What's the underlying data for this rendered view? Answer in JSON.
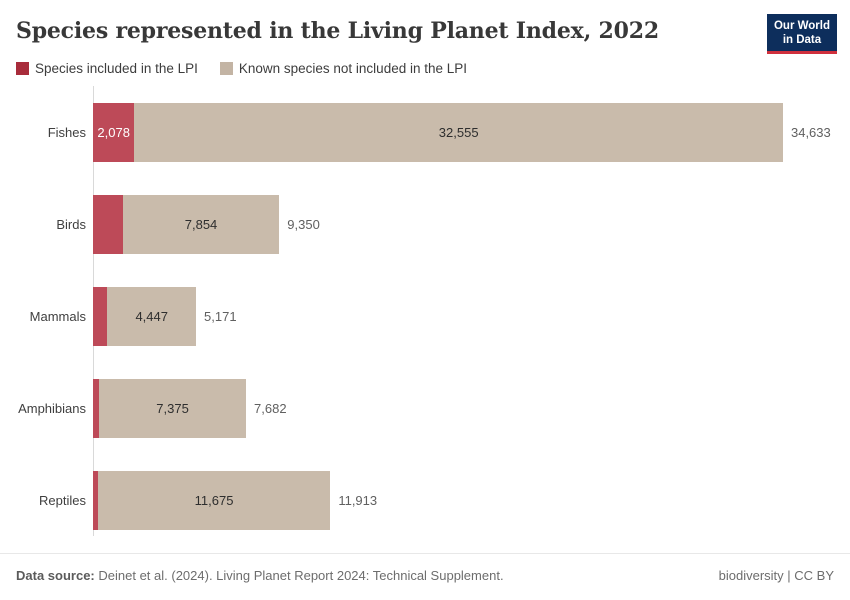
{
  "header": {
    "title": "Species represented in the Living Planet Index, 2022"
  },
  "logo": {
    "line1": "Our World",
    "line2": "in Data"
  },
  "chart_data": {
    "type": "bar",
    "orientation": "horizontal",
    "stacked": true,
    "title": "Species represented in the Living Planet Index, 2022",
    "categories": [
      "Fishes",
      "Birds",
      "Mammals",
      "Amphibians",
      "Reptiles"
    ],
    "series": [
      {
        "name": "Species included in the LPI",
        "values": [
          2078,
          1496,
          724,
          307,
          238
        ]
      },
      {
        "name": "Known species not included in the LPI",
        "values": [
          32555,
          7854,
          4447,
          7375,
          11675
        ]
      }
    ],
    "totals": [
      34633,
      9350,
      5171,
      7682,
      11913
    ],
    "visible_segment_labels": {
      "lpi": [
        "2,078",
        null,
        null,
        null,
        null
      ],
      "known": [
        "32,555",
        "7,854",
        "4,447",
        "7,375",
        "11,675"
      ],
      "totals": [
        "34,633",
        "9,350",
        "5,171",
        "7,682",
        "11,913"
      ]
    },
    "xmax": 34633,
    "grid": false,
    "legend_position": "top"
  },
  "colors": {
    "lpi_legend": "#a82c3b",
    "lpi_bar": "#bd4a58",
    "known_legend": "#c3b4a4",
    "known_bar": "#c9bbab",
    "logo_bg": "#0d2e5c",
    "logo_underline": "#d0303d",
    "axis_line": "#d9d9d9",
    "category_label": "#3f3f3f",
    "total_label": "#606060"
  },
  "footer": {
    "data_source_label": "Data source:",
    "data_source_text": "Deinet et al. (2024). Living Planet Report 2024: Technical Supplement.",
    "credit": "biodiversity | CC BY"
  }
}
